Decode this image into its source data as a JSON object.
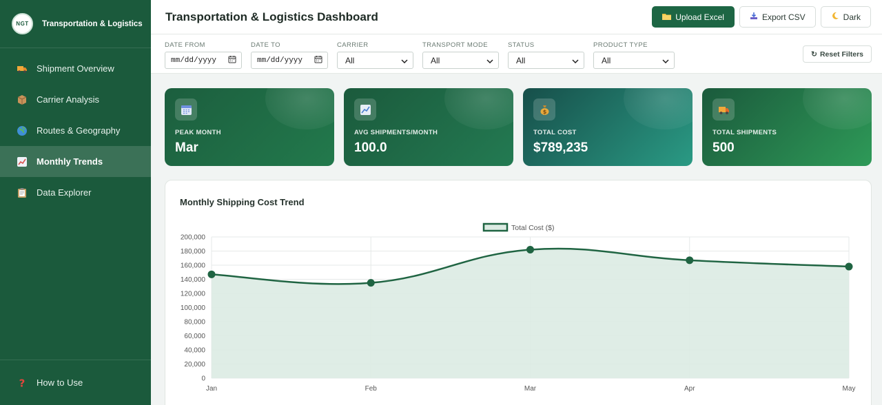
{
  "app": {
    "logo_text": "NGT",
    "name": "Transportation & Logistics"
  },
  "sidebar": {
    "items": [
      {
        "label": "Shipment Overview",
        "icon": "truck-icon",
        "active": false
      },
      {
        "label": "Carrier Analysis",
        "icon": "package-icon",
        "active": false
      },
      {
        "label": "Routes & Geography",
        "icon": "globe-icon",
        "active": false
      },
      {
        "label": "Monthly Trends",
        "icon": "chart-up-icon",
        "active": true
      },
      {
        "label": "Data Explorer",
        "icon": "clipboard-icon",
        "active": false
      }
    ],
    "footer": {
      "label": "How to Use",
      "icon": "question-icon"
    }
  },
  "header": {
    "title": "Transportation & Logistics Dashboard",
    "upload_label": "Upload Excel",
    "export_label": "Export CSV",
    "theme_label": "Dark"
  },
  "filters": {
    "date_from": {
      "label": "Date From",
      "placeholder": "mm/dd/yyyy"
    },
    "date_to": {
      "label": "Date To",
      "placeholder": "mm/dd/yyyy"
    },
    "carrier": {
      "label": "Carrier",
      "value": "All"
    },
    "transport_mode": {
      "label": "Transport Mode",
      "value": "All"
    },
    "status": {
      "label": "Status",
      "value": "All"
    },
    "product_type": {
      "label": "Product Type",
      "value": "All"
    },
    "reset_label": "Reset Filters"
  },
  "kpis": [
    {
      "label": "Peak Month",
      "value": "Mar",
      "icon": "calendar-icon"
    },
    {
      "label": "Avg Shipments/Month",
      "value": "100.0",
      "icon": "chart-up-icon"
    },
    {
      "label": "Total Cost",
      "value": "$789,235",
      "icon": "money-bag-icon"
    },
    {
      "label": "Total Shipments",
      "value": "500",
      "icon": "truck-icon"
    }
  ],
  "colors": {
    "sidebar": "#1b5a3c",
    "accent": "#1d6644",
    "line": "#1f6442",
    "fill": "#dcebe3"
  },
  "chart_data": {
    "type": "area",
    "title": "Monthly Shipping Cost Trend",
    "categories": [
      "Jan",
      "Feb",
      "Mar",
      "Apr",
      "May"
    ],
    "series": [
      {
        "name": "Total Cost ($)",
        "values": [
          147000,
          135000,
          182000,
          167000,
          158000
        ]
      }
    ],
    "ylim": [
      0,
      200000
    ],
    "yticks": [
      "0",
      "20,000",
      "40,000",
      "60,000",
      "80,000",
      "100,000",
      "120,000",
      "140,000",
      "160,000",
      "180,000",
      "200,000"
    ],
    "grid": true,
    "legend": "top-center",
    "smooth": true
  }
}
